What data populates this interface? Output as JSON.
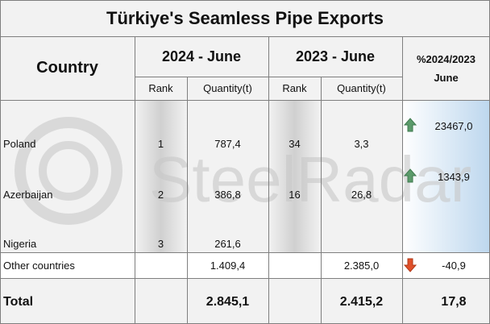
{
  "title": "Türkiye's Seamless Pipe Exports",
  "watermark": "SteelRadar",
  "header": {
    "country": "Country",
    "period1": "2024 - June",
    "period2": "2023 - June",
    "change": [
      "%2024/2023",
      "June"
    ]
  },
  "subheaders": [
    "Rank",
    "Quantity(t)",
    "Rank",
    "Quantity(t)"
  ],
  "rows": [
    [
      "Poland",
      "1",
      "787,4",
      "34",
      "3,3",
      "23467,0"
    ],
    [
      "Azerbaijan",
      "2",
      "386,8",
      "16",
      "26,8",
      "1343,9"
    ],
    [
      "Nigeria",
      "3",
      "261,6",
      null,
      null,
      null
    ],
    [
      "Other countries",
      null,
      "1.409,4",
      null,
      "2.385,0",
      "-40,9"
    ]
  ],
  "total": [
    "Total",
    null,
    "2.845,1",
    null,
    "2.415,2",
    "17,8"
  ]
}
